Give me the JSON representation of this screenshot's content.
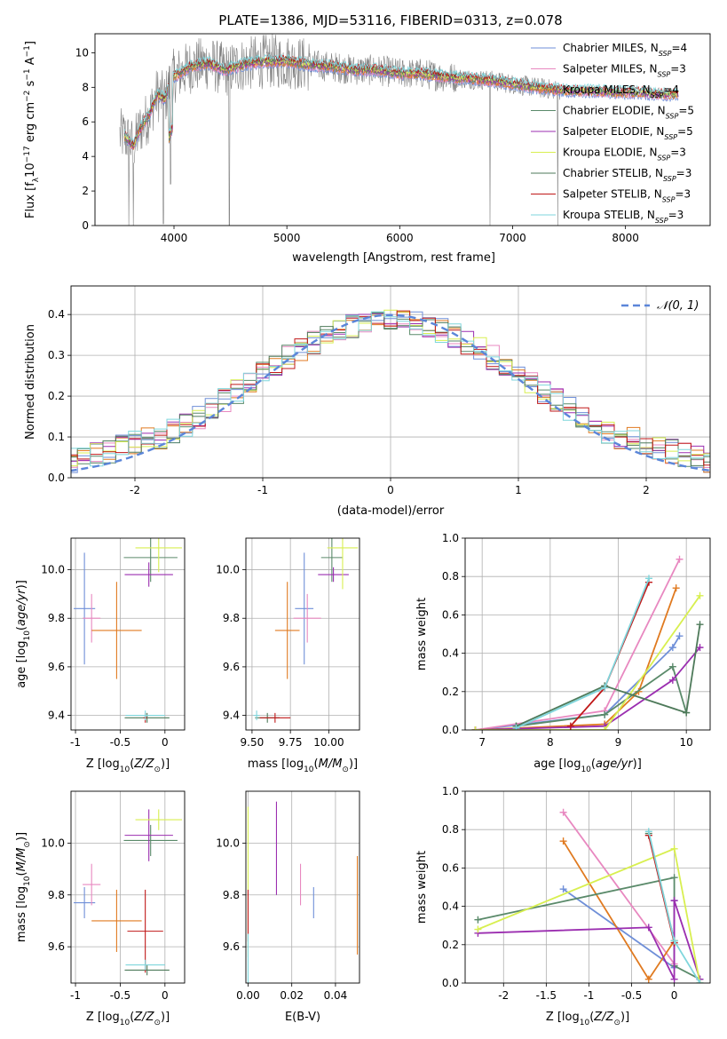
{
  "figure_title": "PLATE=1386, MJD=53116, FIBERID=0313, z=0.078",
  "colors": {
    "axis": "#000000",
    "grid": "#b0b0b0",
    "spectrum_data": "#808080",
    "normal_curve": "#5b86d9"
  },
  "models": [
    {
      "name": "Chabrier MILES",
      "nssp": "4",
      "color": "#6f8fd8"
    },
    {
      "name": "Salpeter MILES",
      "nssp": "3",
      "color": "#e888c0"
    },
    {
      "name": "Kroupa MILES",
      "nssp": "4",
      "color": "#e07a20"
    },
    {
      "name": "Chabrier ELODIE",
      "nssp": "5",
      "color": "#5a8a6a"
    },
    {
      "name": "Salpeter ELODIE",
      "nssp": "5",
      "color": "#9b2eb0"
    },
    {
      "name": "Kroupa ELODIE",
      "nssp": "3",
      "color": "#d8ef50"
    },
    {
      "name": "Chabrier STELIB",
      "nssp": "3",
      "color": "#4e7a5a"
    },
    {
      "name": "Salpeter STELIB",
      "nssp": "3",
      "color": "#c01818"
    },
    {
      "name": "Kroupa STELIB",
      "nssp": "3",
      "color": "#7fd6dc"
    }
  ],
  "chart_data": [
    {
      "id": "spectrum",
      "type": "line",
      "xlabel": "wavelength [Angstrom, rest frame]",
      "ylabel": "Flux [f_λ 10^-17 erg cm^-2 s^-1 A^-1]",
      "xlim": [
        3300,
        8750
      ],
      "ylim": [
        0,
        11.1
      ],
      "xticks": [
        4000,
        5000,
        6000,
        7000,
        8000
      ],
      "yticks": [
        0,
        2,
        4,
        6,
        8,
        10
      ],
      "legend_position": "upper-right",
      "continuum": {
        "x": [
          3560,
          3640,
          3700,
          3780,
          3850,
          3920,
          3980,
          4050,
          4150,
          4300,
          4450,
          4600,
          4800,
          5000,
          5200,
          5400,
          5600,
          5800,
          6000,
          6200,
          6400,
          6600,
          6800,
          7000,
          7200,
          7320,
          7400,
          7500,
          7700,
          7900,
          8100,
          8300,
          8470
        ],
        "y": [
          5.2,
          4.6,
          5.6,
          6.4,
          7.6,
          7.3,
          8.6,
          8.8,
          9.2,
          9.4,
          9.0,
          9.3,
          9.5,
          9.5,
          9.3,
          9.2,
          9.0,
          9.0,
          8.8,
          8.8,
          8.6,
          8.5,
          8.4,
          8.2,
          8.0,
          7.9,
          7.85,
          7.8,
          7.8,
          7.7,
          7.7,
          7.6,
          7.6
        ]
      },
      "absorption_dips": [
        {
          "x": 3600,
          "y": 0
        },
        {
          "x": 3640,
          "y": 0
        },
        {
          "x": 3905,
          "y": 0.1
        },
        {
          "x": 3970,
          "y": 2.4
        },
        {
          "x": 4490,
          "y": 0
        },
        {
          "x": 6800,
          "y": 0
        },
        {
          "x": 7400,
          "y": 0
        }
      ],
      "data_range": [
        3520,
        7420
      ],
      "models_range": [
        3560,
        8470
      ]
    },
    {
      "id": "residuals",
      "type": "histogram",
      "xlabel": "(data-model)/error",
      "ylabel": "Normed distribution",
      "xlim": [
        -2.5,
        2.5
      ],
      "ylim": [
        0,
        0.47
      ],
      "xticks": [
        -2,
        -1,
        0,
        1,
        2
      ],
      "yticks": [
        0.0,
        0.1,
        0.2,
        0.3,
        0.4
      ],
      "bin_width": 0.1,
      "bin_start": -2.5,
      "legend_label": "𝒩(0, 1)",
      "legend_position": "upper-right",
      "reference_curve": {
        "type": "normal",
        "mean": 0,
        "sd": 1
      }
    },
    {
      "id": "age_vs_Z",
      "type": "errorbar",
      "xlabel": "Z [log10(Z/Z⊙)]",
      "ylabel": "age [log10(age/yr)]",
      "xlim": [
        -1.05,
        0.22
      ],
      "ylim": [
        9.34,
        10.13
      ],
      "xticks": [
        -1.0,
        -0.5,
        0.0
      ],
      "yticks": [
        9.4,
        9.6,
        9.8,
        10.0
      ],
      "points": [
        {
          "model": 0,
          "x": -0.9,
          "y": 9.84,
          "xerr": 0.12,
          "yerr": 0.23
        },
        {
          "model": 1,
          "x": -0.82,
          "y": 9.8,
          "xerr": 0.1,
          "yerr": 0.1
        },
        {
          "model": 2,
          "x": -0.54,
          "y": 9.75,
          "xerr": 0.28,
          "yerr": 0.2
        },
        {
          "model": 3,
          "x": -0.16,
          "y": 10.05,
          "xerr": 0.3,
          "yerr": 0.1
        },
        {
          "model": 4,
          "x": -0.18,
          "y": 9.98,
          "xerr": 0.27,
          "yerr": 0.05
        },
        {
          "model": 5,
          "x": -0.07,
          "y": 10.09,
          "xerr": 0.26,
          "yerr": 0.1
        },
        {
          "model": 6,
          "x": -0.2,
          "y": 9.39,
          "xerr": 0.25,
          "yerr": 0.02
        },
        {
          "model": 7,
          "x": -0.22,
          "y": 9.39,
          "xerr": 0.02,
          "yerr": 0.02
        },
        {
          "model": 8,
          "x": -0.22,
          "y": 9.4,
          "xerr": 0.22,
          "yerr": 0.02
        }
      ]
    },
    {
      "id": "age_vs_mass",
      "type": "errorbar",
      "xlabel": "mass [log10(M/M⊙)]",
      "ylabel": "",
      "xlim": [
        9.46,
        10.2
      ],
      "ylim": [
        9.34,
        10.13
      ],
      "xticks": [
        9.5,
        9.75,
        10.0
      ],
      "tick_labels_x": [
        "9.50",
        "9.75",
        "10.00"
      ],
      "yticks": [
        9.4,
        9.6,
        9.8,
        10.0
      ],
      "points": [
        {
          "model": 0,
          "x": 9.84,
          "y": 9.84,
          "xerr": 0.06,
          "yerr": 0.23
        },
        {
          "model": 1,
          "x": 9.86,
          "y": 9.8,
          "xerr": 0.09,
          "yerr": 0.1
        },
        {
          "model": 2,
          "x": 9.73,
          "y": 9.75,
          "xerr": 0.08,
          "yerr": 0.2
        },
        {
          "model": 3,
          "x": 10.02,
          "y": 10.05,
          "xerr": 0.07,
          "yerr": 0.1
        },
        {
          "model": 4,
          "x": 10.03,
          "y": 9.98,
          "xerr": 0.1,
          "yerr": 0.03
        },
        {
          "model": 5,
          "x": 10.09,
          "y": 10.09,
          "xerr": 0.1,
          "yerr": 0.17
        },
        {
          "model": 6,
          "x": 9.6,
          "y": 9.39,
          "xerr": 0.08,
          "yerr": 0.02
        },
        {
          "model": 7,
          "x": 9.65,
          "y": 9.39,
          "xerr": 0.1,
          "yerr": 0.02
        },
        {
          "model": 8,
          "x": 9.53,
          "y": 9.4,
          "xerr": 0.02,
          "yerr": 0.02
        }
      ]
    },
    {
      "id": "mass_weight_vs_age",
      "type": "line",
      "xlabel": "age [log10(age/yr)]",
      "ylabel": "mass weight",
      "xlim": [
        6.75,
        10.35
      ],
      "ylim": [
        0,
        1.0
      ],
      "xticks": [
        7,
        8,
        9,
        10
      ],
      "yticks": [
        0.0,
        0.2,
        0.4,
        0.6,
        0.8,
        1.0
      ],
      "series": [
        {
          "model": 0,
          "x": [
            6.9,
            8.8,
            9.8,
            9.9
          ],
          "y": [
            0.0,
            0.08,
            0.43,
            0.49
          ]
        },
        {
          "model": 1,
          "x": [
            6.9,
            8.8,
            9.9
          ],
          "y": [
            0.0,
            0.1,
            0.89
          ]
        },
        {
          "model": 2,
          "x": [
            6.9,
            8.8,
            9.3,
            9.85
          ],
          "y": [
            0.0,
            0.03,
            0.2,
            0.74
          ]
        },
        {
          "model": 3,
          "x": [
            7.5,
            8.8,
            9.8,
            10.0
          ],
          "y": [
            0.02,
            0.08,
            0.33,
            0.09
          ]
        },
        {
          "model": 4,
          "x": [
            6.9,
            8.8,
            9.8,
            10.2
          ],
          "y": [
            0.0,
            0.02,
            0.26,
            0.43
          ]
        },
        {
          "model": 5,
          "x": [
            6.9,
            8.8,
            10.2
          ],
          "y": [
            0.0,
            0.0,
            0.7
          ]
        },
        {
          "model": 6,
          "x": [
            7.5,
            8.8,
            10.0,
            10.2
          ],
          "y": [
            0.02,
            0.23,
            0.09,
            0.55
          ]
        },
        {
          "model": 7,
          "x": [
            8.3,
            8.8,
            9.45
          ],
          "y": [
            0.02,
            0.22,
            0.77
          ]
        },
        {
          "model": 8,
          "x": [
            7.5,
            8.8,
            9.45
          ],
          "y": [
            0.01,
            0.22,
            0.79
          ]
        }
      ]
    },
    {
      "id": "mass_vs_Z",
      "type": "errorbar",
      "xlabel": "Z [log10(Z/Z⊙)]",
      "ylabel": "mass [log10(M/M⊙)]",
      "xlim": [
        -1.05,
        0.22
      ],
      "ylim": [
        9.46,
        10.2
      ],
      "xticks": [
        -1.0,
        -0.5,
        0.0
      ],
      "yticks": [
        9.6,
        9.8,
        10.0
      ],
      "points": [
        {
          "model": 0,
          "x": -0.9,
          "y": 9.77,
          "xerr": 0.12,
          "yerr": 0.06
        },
        {
          "model": 1,
          "x": -0.82,
          "y": 9.84,
          "xerr": 0.1,
          "yerr": 0.08
        },
        {
          "model": 2,
          "x": -0.54,
          "y": 9.7,
          "xerr": 0.28,
          "yerr": 0.12
        },
        {
          "model": 3,
          "x": -0.16,
          "y": 10.01,
          "xerr": 0.3,
          "yerr": 0.06
        },
        {
          "model": 4,
          "x": -0.18,
          "y": 10.03,
          "xerr": 0.27,
          "yerr": 0.1
        },
        {
          "model": 5,
          "x": -0.07,
          "y": 10.09,
          "xerr": 0.26,
          "yerr": 0.04
        },
        {
          "model": 6,
          "x": -0.2,
          "y": 9.51,
          "xerr": 0.25,
          "yerr": 0.02
        },
        {
          "model": 7,
          "x": -0.22,
          "y": 9.66,
          "xerr": 0.2,
          "yerr": 0.16
        },
        {
          "model": 8,
          "x": -0.22,
          "y": 9.53,
          "xerr": 0.22,
          "yerr": 0.02
        }
      ]
    },
    {
      "id": "mass_vs_ebv",
      "type": "errorbar",
      "xlabel": "E(B-V)",
      "ylabel": "",
      "xlim": [
        -0.001,
        0.051
      ],
      "ylim": [
        9.46,
        10.2
      ],
      "xticks": [
        0.0,
        0.02,
        0.04
      ],
      "tick_labels_x": [
        "0.00",
        "0.02",
        "0.04"
      ],
      "yticks": [
        9.6,
        9.8,
        10.0
      ],
      "points": [
        {
          "model": 0,
          "x": 0.03,
          "y": 9.77,
          "xerr": 0,
          "yerr": 0.06
        },
        {
          "model": 1,
          "x": 0.024,
          "y": 9.84,
          "xerr": 0,
          "yerr": 0.08
        },
        {
          "model": 2,
          "x": 0.05,
          "y": 9.76,
          "xerr": 0,
          "yerr": 0.19
        },
        {
          "model": 4,
          "x": 0.013,
          "y": 9.98,
          "xerr": 0,
          "yerr": 0.18
        },
        {
          "model": 5,
          "x": 0.0,
          "y": 9.85,
          "xerr": 0,
          "yerr": 0.29
        },
        {
          "model": 7,
          "x": 0.0,
          "y": 9.72,
          "xerr": 0,
          "yerr": 0.1
        },
        {
          "model": 8,
          "x": 0.0,
          "y": 9.55,
          "xerr": 0,
          "yerr": 0.1
        }
      ]
    },
    {
      "id": "mass_weight_vs_Z",
      "type": "line",
      "xlabel": "Z [log10(Z/Z⊙)]",
      "ylabel": "mass weight",
      "xlim": [
        -2.45,
        0.42
      ],
      "ylim": [
        0,
        1.0
      ],
      "xticks": [
        -2.0,
        -1.5,
        -1.0,
        -0.5,
        0.0
      ],
      "yticks": [
        0.0,
        0.2,
        0.4,
        0.6,
        0.8,
        1.0
      ],
      "series": [
        {
          "model": 0,
          "x": [
            -1.3,
            0.0,
            0.0
          ],
          "y": [
            0.49,
            0.08,
            0.43
          ]
        },
        {
          "model": 1,
          "x": [
            -1.3,
            0.0
          ],
          "y": [
            0.89,
            0.1
          ]
        },
        {
          "model": 2,
          "x": [
            -1.3,
            -0.3,
            0.0
          ],
          "y": [
            0.74,
            0.02,
            0.22
          ]
        },
        {
          "model": 3,
          "x": [
            -2.3,
            0.0,
            0.0,
            0.3
          ],
          "y": [
            0.33,
            0.55,
            0.09,
            0.02
          ]
        },
        {
          "model": 4,
          "x": [
            -2.3,
            -0.3,
            0.0,
            0.0,
            0.3
          ],
          "y": [
            0.26,
            0.29,
            0.02,
            0.43,
            0.02
          ]
        },
        {
          "model": 5,
          "x": [
            -2.3,
            0.0,
            0.3
          ],
          "y": [
            0.28,
            0.7,
            0.0
          ]
        },
        {
          "model": 6,
          "x": [
            -0.3,
            0.0
          ],
          "y": [
            0.78,
            0.22
          ]
        },
        {
          "model": 7,
          "x": [
            -0.3,
            0.0
          ],
          "y": [
            0.77,
            0.21
          ]
        },
        {
          "model": 8,
          "x": [
            -0.3,
            0.0,
            0.3
          ],
          "y": [
            0.79,
            0.22,
            0.0
          ]
        }
      ]
    }
  ]
}
